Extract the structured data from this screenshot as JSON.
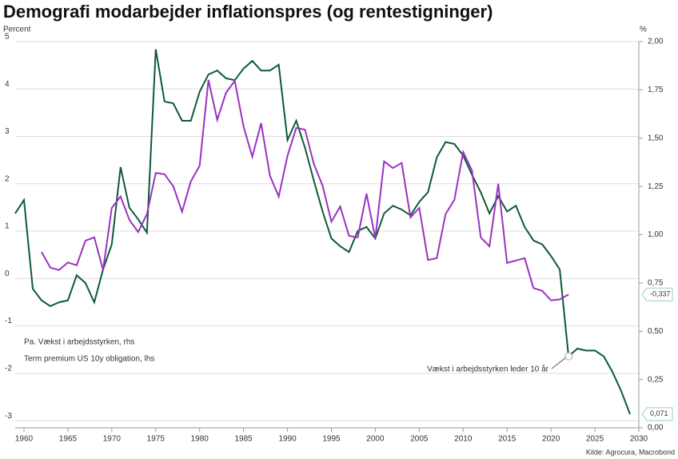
{
  "chart_data": {
    "type": "line",
    "title": "Demografi modarbejder inflationspres (og rentestigninger)",
    "ylabel": "Percent",
    "y2label": "%",
    "source": "Kilde: Agrocura, Macrobond",
    "annotation": "Vækst i arbejdsstyrken leder 10 år",
    "x": [
      1959,
      1960,
      1961,
      1962,
      1963,
      1964,
      1965,
      1966,
      1967,
      1968,
      1969,
      1970,
      1971,
      1972,
      1973,
      1974,
      1975,
      1976,
      1977,
      1978,
      1979,
      1980,
      1981,
      1982,
      1983,
      1984,
      1985,
      1986,
      1987,
      1988,
      1989,
      1990,
      1991,
      1992,
      1993,
      1994,
      1995,
      1996,
      1997,
      1998,
      1999,
      2000,
      2001,
      2002,
      2003,
      2004,
      2005,
      2006,
      2007,
      2008,
      2009,
      2010,
      2011,
      2012,
      2013,
      2014,
      2015,
      2016,
      2017,
      2018,
      2019,
      2020,
      2021,
      2022,
      2023,
      2024,
      2025,
      2026,
      2027,
      2028,
      2029
    ],
    "xlim": [
      1959,
      2030
    ],
    "xticks": [
      1960,
      1965,
      1970,
      1975,
      1980,
      1985,
      1990,
      1995,
      2000,
      2005,
      2010,
      2015,
      2020,
      2025,
      2030
    ],
    "ylim": [
      -3.15,
      5
    ],
    "yticks": [
      -3,
      -2,
      -1,
      0,
      1,
      2,
      3,
      4,
      5
    ],
    "y2lim": [
      0,
      2
    ],
    "y2ticks": [
      {
        "value": 0,
        "label": "0,00"
      },
      {
        "value": 0.25,
        "label": "0,25"
      },
      {
        "value": 0.5,
        "label": "0,50"
      },
      {
        "value": 0.75,
        "label": "0,75"
      },
      {
        "value": 1,
        "label": "1,00"
      },
      {
        "value": 1.25,
        "label": "1,25"
      },
      {
        "value": 1.5,
        "label": "1,50"
      },
      {
        "value": 1.75,
        "label": "1,75"
      },
      {
        "value": 2,
        "label": "2,00"
      }
    ],
    "grid": true,
    "series": [
      {
        "name": "Pa. Vækst i arbejdsstyrken, rhs",
        "color": "#0d5a3b",
        "label_color": "#0d5a3b",
        "axis": "y2",
        "values": [
          1.11,
          1.18,
          0.72,
          0.66,
          0.63,
          0.65,
          0.66,
          0.79,
          0.75,
          0.65,
          0.82,
          0.95,
          1.35,
          1.14,
          1.08,
          1.01,
          1.96,
          1.69,
          1.68,
          1.59,
          1.59,
          1.74,
          1.83,
          1.85,
          1.81,
          1.8,
          1.86,
          1.9,
          1.85,
          1.85,
          1.88,
          1.49,
          1.59,
          1.45,
          1.28,
          1.12,
          0.98,
          0.94,
          0.91,
          1.02,
          1.04,
          0.98,
          1.11,
          1.15,
          1.13,
          1.1,
          1.17,
          1.22,
          1.4,
          1.48,
          1.47,
          1.41,
          1.31,
          1.22,
          1.11,
          1.2,
          1.12,
          1.15,
          1.04,
          0.97,
          0.95,
          0.89,
          0.82,
          0.37,
          0.41,
          0.4,
          0.4,
          0.37,
          0.29,
          0.19,
          0.071
        ],
        "value_labels": [
          null,
          null,
          null,
          null,
          null,
          null,
          null,
          null,
          null,
          null,
          null,
          null,
          null,
          null,
          null,
          null,
          null,
          null,
          null,
          null,
          null,
          null,
          null,
          null,
          null,
          null,
          null,
          null,
          null,
          null,
          null,
          null,
          null,
          null,
          null,
          null,
          null,
          null,
          null,
          null,
          null,
          null,
          null,
          null,
          null,
          null,
          null,
          null,
          null,
          null,
          null,
          null,
          null,
          null,
          null,
          null,
          null,
          null,
          null,
          null,
          null,
          null,
          null,
          null,
          null,
          null,
          null,
          null,
          null,
          null,
          "0,071"
        ]
      },
      {
        "name": "Term premium US 10y obligation, lhs",
        "color": "#9a32c2",
        "label_color": "#7d9fc2",
        "axis": "y",
        "values": [
          null,
          null,
          null,
          0.56,
          0.23,
          0.18,
          0.34,
          0.28,
          0.8,
          0.87,
          0.18,
          1.49,
          1.73,
          1.24,
          0.98,
          1.36,
          2.23,
          2.2,
          1.95,
          1.41,
          2.05,
          2.38,
          4.19,
          3.35,
          3.92,
          4.17,
          3.21,
          2.57,
          3.28,
          2.17,
          1.73,
          2.59,
          3.18,
          3.14,
          2.42,
          1.96,
          1.2,
          1.52,
          0.9,
          0.87,
          1.79,
          0.85,
          2.47,
          2.33,
          2.44,
          1.29,
          1.49,
          0.39,
          0.43,
          1.36,
          1.66,
          2.67,
          2.28,
          0.87,
          0.68,
          2.0,
          0.33,
          0.38,
          0.43,
          -0.2,
          -0.26,
          -0.46,
          -0.44,
          -0.337,
          null,
          null,
          null,
          null,
          null,
          null,
          null
        ],
        "value_labels": [
          null,
          null,
          null,
          null,
          null,
          null,
          null,
          null,
          null,
          null,
          null,
          null,
          null,
          null,
          null,
          null,
          null,
          null,
          null,
          null,
          null,
          null,
          null,
          null,
          null,
          null,
          null,
          null,
          null,
          null,
          null,
          null,
          null,
          null,
          null,
          null,
          null,
          null,
          null,
          null,
          null,
          null,
          null,
          null,
          null,
          null,
          null,
          null,
          null,
          null,
          null,
          null,
          null,
          null,
          null,
          null,
          null,
          null,
          null,
          null,
          null,
          null,
          null,
          "-0,337",
          null,
          null,
          null,
          null,
          null,
          null,
          null
        ]
      }
    ]
  }
}
